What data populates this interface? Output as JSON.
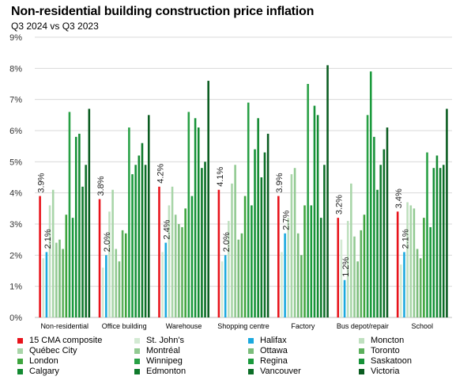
{
  "chart_data": {
    "type": "bar",
    "title": "Non-residential building construction price inflation",
    "subtitle": "Q3 2024 vs Q3 2023",
    "xlabel": "",
    "ylabel": "",
    "ylim": [
      0,
      9
    ],
    "y_ticks": [
      "0%",
      "1%",
      "2%",
      "3%",
      "4%",
      "5%",
      "6%",
      "7%",
      "8%",
      "9%"
    ],
    "grid": true,
    "legend_position": "bottom",
    "categories": [
      "Non-residential",
      "Office building",
      "Warehouse",
      "Shopping centre",
      "Factory",
      "Bus depot/repair",
      "School"
    ],
    "series": [
      {
        "name": "15 CMA composite",
        "color": "#e8131b",
        "values": [
          3.9,
          3.8,
          4.2,
          4.1,
          3.9,
          3.2,
          3.4
        ]
      },
      {
        "name": "St. John's",
        "color": "#d3ead3",
        "values": [
          1.9,
          1.6,
          2.1,
          1.8,
          2.1,
          2.5,
          1.7
        ]
      },
      {
        "name": "Halifax",
        "color": "#1ba9df",
        "values": [
          2.1,
          2.0,
          2.4,
          2.0,
          2.7,
          1.2,
          2.1
        ]
      },
      {
        "name": "Moncton",
        "color": "#bfe0bf",
        "values": [
          3.6,
          3.4,
          3.6,
          3.1,
          3.2,
          3.1,
          3.7
        ]
      },
      {
        "name": "Québec City",
        "color": "#a8d5a8",
        "values": [
          4.1,
          4.1,
          4.2,
          4.3,
          4.6,
          4.3,
          3.6
        ]
      },
      {
        "name": "Montréal",
        "color": "#92ca92",
        "values": [
          2.4,
          2.2,
          3.3,
          4.9,
          4.8,
          2.6,
          3.5
        ]
      },
      {
        "name": "Ottawa",
        "color": "#7bbd7b",
        "values": [
          2.5,
          1.8,
          3.0,
          2.5,
          2.7,
          1.8,
          2.2
        ]
      },
      {
        "name": "Toronto",
        "color": "#5cb05c",
        "values": [
          2.2,
          2.8,
          2.9,
          2.7,
          2.0,
          2.8,
          1.9
        ]
      },
      {
        "name": "London",
        "color": "#3ea53e",
        "values": [
          3.3,
          2.7,
          3.5,
          3.9,
          3.6,
          3.3,
          3.2
        ]
      },
      {
        "name": "Winnipeg",
        "color": "#28a045",
        "values": [
          6.6,
          6.1,
          6.6,
          6.9,
          7.5,
          6.5,
          5.3
        ]
      },
      {
        "name": "Regina",
        "color": "#1a9a3c",
        "values": [
          3.2,
          4.6,
          3.9,
          3.6,
          3.6,
          7.9,
          2.9
        ]
      },
      {
        "name": "Saskatoon",
        "color": "#169238",
        "values": [
          5.8,
          4.9,
          6.4,
          5.4,
          6.8,
          5.8,
          4.8
        ]
      },
      {
        "name": "Calgary",
        "color": "#138a32",
        "values": [
          5.9,
          5.2,
          6.1,
          6.4,
          6.5,
          4.1,
          5.2
        ]
      },
      {
        "name": "Edmonton",
        "color": "#0f7a2c",
        "values": [
          4.2,
          5.6,
          4.8,
          4.5,
          3.2,
          4.9,
          4.8
        ]
      },
      {
        "name": "Vancouver",
        "color": "#0c6e27",
        "values": [
          4.9,
          4.9,
          5.0,
          5.3,
          4.9,
          5.4,
          4.9
        ]
      },
      {
        "name": "Victoria",
        "color": "#0a5c20",
        "values": [
          6.7,
          6.5,
          7.6,
          5.9,
          8.1,
          6.1,
          6.7
        ]
      }
    ],
    "annotations": [
      {
        "category": "Non-residential",
        "series": "15 CMA composite",
        "text": "3.9%"
      },
      {
        "category": "Non-residential",
        "series": "Halifax",
        "text": "2.1%"
      },
      {
        "category": "Office building",
        "series": "15 CMA composite",
        "text": "3.8%"
      },
      {
        "category": "Office building",
        "series": "Halifax",
        "text": "2.0%"
      },
      {
        "category": "Warehouse",
        "series": "15 CMA composite",
        "text": "4.2%"
      },
      {
        "category": "Warehouse",
        "series": "Halifax",
        "text": "2.4%"
      },
      {
        "category": "Shopping centre",
        "series": "15 CMA composite",
        "text": "4.1%"
      },
      {
        "category": "Shopping centre",
        "series": "Halifax",
        "text": "2.0%"
      },
      {
        "category": "Factory",
        "series": "15 CMA composite",
        "text": "3.9%"
      },
      {
        "category": "Factory",
        "series": "Halifax",
        "text": "2.7%"
      },
      {
        "category": "Bus depot/repair",
        "series": "15 CMA composite",
        "text": "3.2%"
      },
      {
        "category": "Bus depot/repair",
        "series": "Halifax",
        "text": "1.2%"
      },
      {
        "category": "School",
        "series": "15 CMA composite",
        "text": "3.4%"
      },
      {
        "category": "School",
        "series": "Halifax",
        "text": "2.1%"
      }
    ]
  }
}
